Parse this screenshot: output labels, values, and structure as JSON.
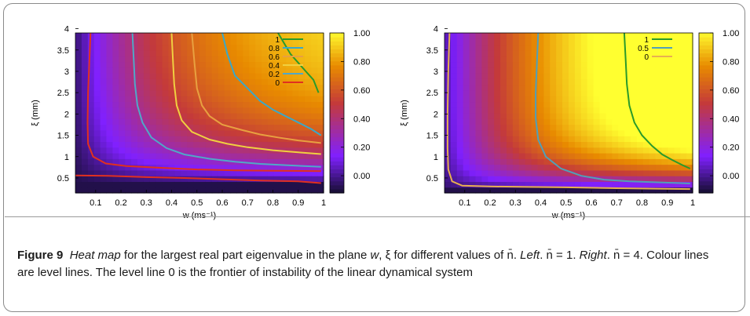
{
  "figure": {
    "label": "Figure 9",
    "caption_parts": [
      {
        "text": "Heat map",
        "italic": true
      },
      {
        "text": " for the largest real part eigenvalue in the plane ",
        "italic": false
      },
      {
        "text": "w",
        "italic": true
      },
      {
        "text": ", ξ for different values of n̄. ",
        "italic": false
      },
      {
        "text": "Left",
        "italic": true
      },
      {
        "text": ". n̄ = 1. ",
        "italic": false
      },
      {
        "text": "Right",
        "italic": true
      },
      {
        "text": ". n̄ = 4. Colour lines are level lines. The level line 0 is the frontier of instability of the linear dynamical system",
        "italic": false
      }
    ]
  },
  "chart_data": [
    {
      "type": "heatmap",
      "panel": "left",
      "xlabel": "w (ms⁻¹)",
      "ylabel": "ξ (mm)",
      "xlim": [
        0.02,
        1.0
      ],
      "ylim": [
        0.15,
        3.9
      ],
      "x_ticks": [
        "0.1",
        "0.2",
        "0.3",
        "0.4",
        "0.5",
        "0.6",
        "0.7",
        "0.8",
        "0.9",
        "1"
      ],
      "y_ticks": [
        "0.5",
        "1",
        "1.5",
        "2",
        "2.5",
        "3",
        "3.5",
        "4"
      ],
      "colorbar": {
        "range": [
          -0.12,
          1.0
        ],
        "ticks": [
          "1.00",
          "0.80",
          "0.60",
          "0.40",
          "0.20",
          "0.00"
        ]
      },
      "colors": {
        "low": "#1a0f3a",
        "mid_low": "#8020ff",
        "mid": "#c43a3a",
        "mid_high": "#e88a00",
        "high": "#ffff30"
      },
      "contours": [
        {
          "level": "1",
          "color": "#2a9a2a",
          "x": [
            0.82,
            0.85,
            0.87,
            0.9,
            0.93,
            0.96,
            0.98
          ],
          "y": [
            3.9,
            3.6,
            3.4,
            3.2,
            3.0,
            2.8,
            2.5
          ]
        },
        {
          "level": "0.8",
          "color": "#3aa8c8",
          "x": [
            0.6,
            0.62,
            0.65,
            0.7,
            0.75,
            0.8,
            0.85,
            0.9,
            0.95,
            0.99
          ],
          "y": [
            3.9,
            3.4,
            2.9,
            2.6,
            2.3,
            2.1,
            1.95,
            1.8,
            1.65,
            1.5
          ]
        },
        {
          "level": "0.6",
          "color": "#e8a040",
          "x": [
            0.48,
            0.49,
            0.5,
            0.52,
            0.55,
            0.6,
            0.68,
            0.75,
            0.82,
            0.9,
            0.99
          ],
          "y": [
            3.9,
            3.2,
            2.6,
            2.2,
            1.95,
            1.75,
            1.62,
            1.52,
            1.45,
            1.38,
            1.32
          ]
        },
        {
          "level": "0.4",
          "color": "#f0d040",
          "x": [
            0.4,
            0.405,
            0.41,
            0.42,
            0.44,
            0.48,
            0.55,
            0.62,
            0.7,
            0.8,
            0.9,
            0.99
          ],
          "y": [
            3.9,
            3.3,
            2.7,
            2.2,
            1.85,
            1.58,
            1.4,
            1.3,
            1.22,
            1.15,
            1.1,
            1.06
          ]
        },
        {
          "level": "0.2",
          "color": "#50a8c8",
          "x": [
            0.245,
            0.25,
            0.255,
            0.265,
            0.285,
            0.32,
            0.38,
            0.45,
            0.55,
            0.65,
            0.75,
            0.85,
            0.99
          ],
          "y": [
            3.9,
            3.3,
            2.7,
            2.2,
            1.8,
            1.45,
            1.2,
            1.05,
            0.95,
            0.88,
            0.83,
            0.8,
            0.76
          ]
        },
        {
          "level": "0",
          "color": "#e03020",
          "x": [
            0.08,
            0.075,
            0.07,
            0.068,
            0.07,
            0.09,
            0.14,
            0.22,
            0.35,
            0.5,
            0.65,
            0.8,
            0.99
          ],
          "y": [
            3.9,
            3.2,
            2.5,
            1.8,
            1.3,
            1.0,
            0.84,
            0.78,
            0.74,
            0.7,
            0.68,
            0.67,
            0.66
          ]
        },
        {
          "level": "0",
          "color": "#e03020",
          "x": [
            0.02,
            0.15,
            0.3,
            0.45,
            0.6,
            0.75,
            0.9,
            0.99
          ],
          "y": [
            0.56,
            0.55,
            0.52,
            0.5,
            0.47,
            0.44,
            0.42,
            0.38
          ]
        }
      ]
    },
    {
      "type": "heatmap",
      "panel": "right",
      "xlabel": "w (ms⁻¹)",
      "ylabel": "ξ (mm)",
      "xlim": [
        0.02,
        1.0
      ],
      "ylim": [
        0.15,
        3.9
      ],
      "x_ticks": [
        "0.1",
        "0.2",
        "0.3",
        "0.4",
        "0.5",
        "0.6",
        "0.7",
        "0.8",
        "0.9",
        "1"
      ],
      "y_ticks": [
        "0.5",
        "1",
        "1.5",
        "2",
        "2.5",
        "3",
        "3.5",
        "4"
      ],
      "colorbar": {
        "range": [
          -0.12,
          1.0
        ],
        "ticks": [
          "1.00",
          "0.80",
          "0.60",
          "0.40",
          "0.20",
          "0.00"
        ]
      },
      "colors": {
        "low": "#1a0f3a",
        "mid_low": "#8020ff",
        "mid": "#c43a3a",
        "mid_high": "#e88a00",
        "high": "#ffff30"
      },
      "contours": [
        {
          "level": "1",
          "color": "#2a9a2a",
          "x": [
            0.73,
            0.735,
            0.74,
            0.75,
            0.77,
            0.8,
            0.84,
            0.88,
            0.92,
            0.96,
            0.99
          ],
          "y": [
            3.9,
            3.3,
            2.7,
            2.2,
            1.8,
            1.5,
            1.25,
            1.05,
            0.92,
            0.8,
            0.72
          ]
        },
        {
          "level": "0.5",
          "color": "#50a0b8",
          "x": [
            0.39,
            0.385,
            0.38,
            0.38,
            0.39,
            0.42,
            0.48,
            0.56,
            0.65,
            0.75,
            0.85,
            0.95,
            0.99
          ],
          "y": [
            3.9,
            3.2,
            2.5,
            1.9,
            1.4,
            1.0,
            0.72,
            0.55,
            0.46,
            0.42,
            0.4,
            0.38,
            0.37
          ]
        },
        {
          "level": "0",
          "color": "#e8b050",
          "x": [
            0.04,
            0.035,
            0.032,
            0.032,
            0.035,
            0.05,
            0.09,
            0.2,
            0.35,
            0.5,
            0.7,
            0.85,
            0.99
          ],
          "y": [
            3.9,
            3.0,
            2.0,
            1.2,
            0.7,
            0.42,
            0.32,
            0.3,
            0.29,
            0.28,
            0.26,
            0.25,
            0.24
          ]
        }
      ]
    }
  ]
}
